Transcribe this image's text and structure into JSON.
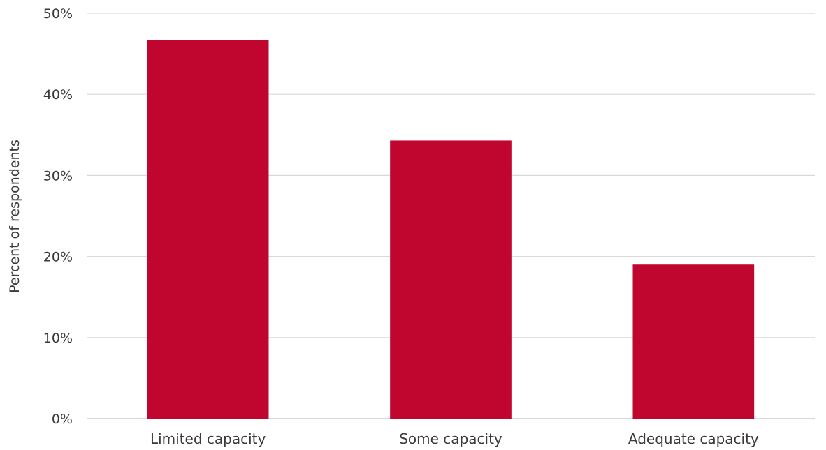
{
  "chart_data": {
    "type": "bar",
    "categories": [
      "Limited capacity",
      "Some capacity",
      "Adequate capacity"
    ],
    "values": [
      46.7,
      34.3,
      19.0
    ],
    "ylabel": "Percent of respondents",
    "ylim": [
      0,
      50
    ],
    "yticks": [
      0,
      10,
      20,
      30,
      40,
      50
    ],
    "ytick_labels": [
      "0%",
      "10%",
      "20%",
      "30%",
      "40%",
      "50%"
    ],
    "grid": true,
    "bar_color": "#c0052f",
    "grid_color": "#d9d9d9"
  }
}
